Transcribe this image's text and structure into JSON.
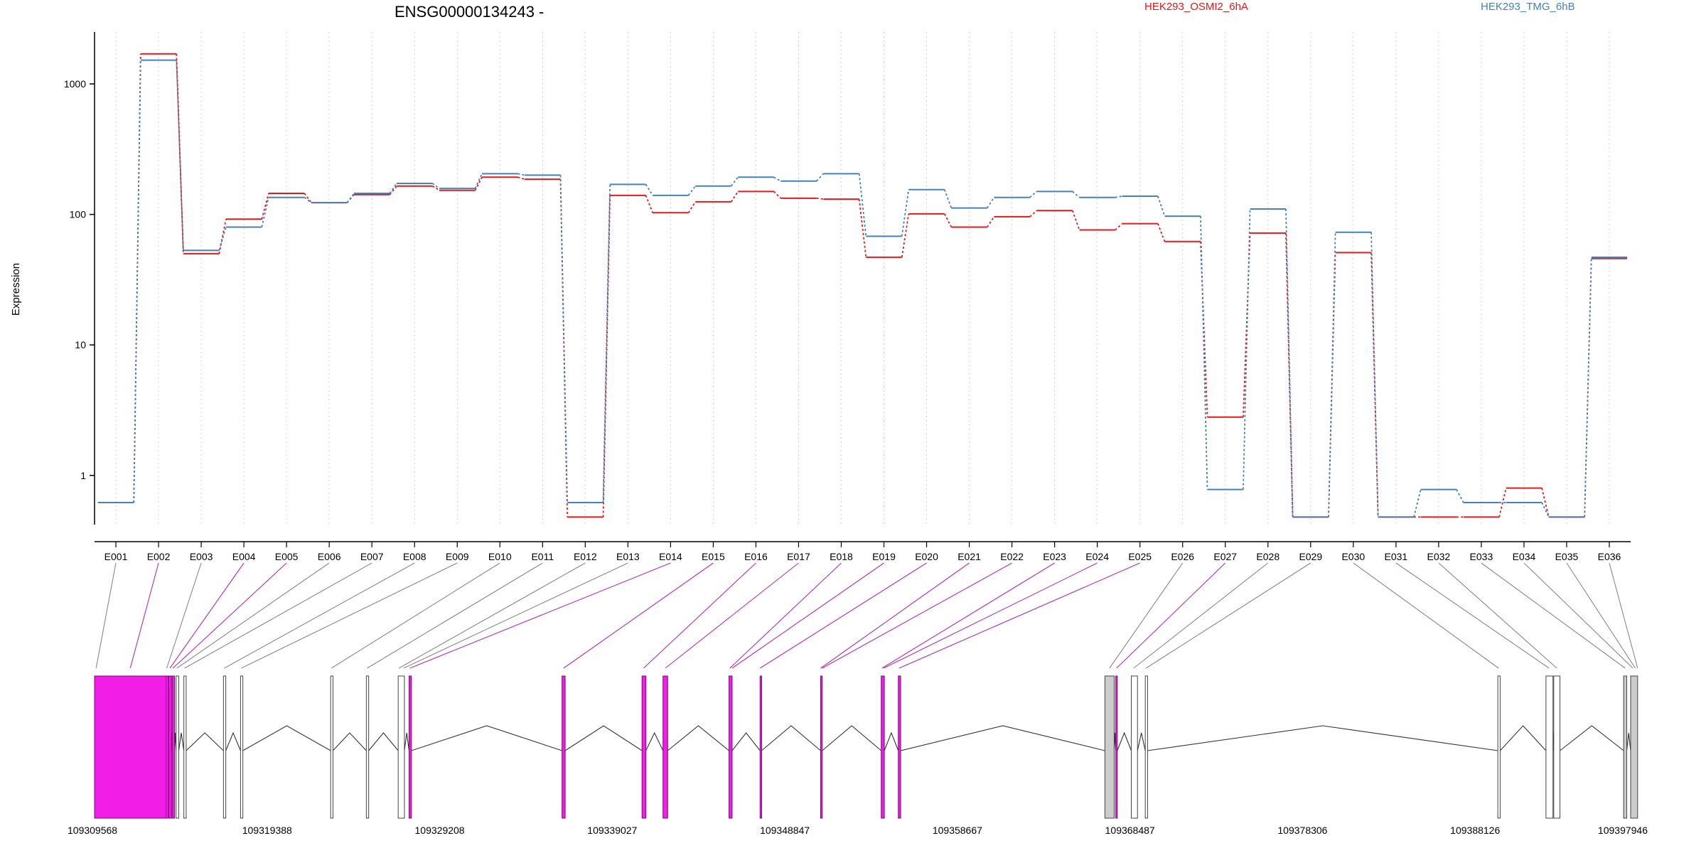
{
  "chart_data": {
    "type": "line",
    "title": "ENSG00000134243 -",
    "ylabel": "Expression",
    "y_scale": "log",
    "ylim": [
      0.42,
      2500
    ],
    "y_ticks": [
      {
        "value": 1,
        "label": "1"
      },
      {
        "value": 10,
        "label": "10"
      },
      {
        "value": 100,
        "label": "100"
      },
      {
        "value": 1000,
        "label": "1000"
      }
    ],
    "categories": [
      "E001",
      "E002",
      "E003",
      "E004",
      "E005",
      "E006",
      "E007",
      "E008",
      "E009",
      "E010",
      "E011",
      "E012",
      "E013",
      "E014",
      "E015",
      "E016",
      "E017",
      "E018",
      "E019",
      "E020",
      "E021",
      "E022",
      "E023",
      "E024",
      "E025",
      "E026",
      "E027",
      "E028",
      "E029",
      "E030",
      "E031",
      "E032",
      "E033",
      "E034",
      "E035",
      "E036"
    ],
    "grid": "vertical-dotted",
    "legend_position": "top",
    "series": [
      {
        "name": "HEK293_OSMI2_6hA",
        "color": "#e31a1c",
        "values": [
          0.62,
          1700,
          50,
          92,
          145,
          123,
          142,
          165,
          153,
          193,
          186,
          0.48,
          140,
          103,
          125,
          150,
          133,
          131,
          47,
          101,
          80,
          96,
          107,
          76,
          85,
          62,
          2.8,
          72,
          0.48,
          51,
          0.48,
          0.48,
          0.48,
          0.8,
          0.48,
          46
        ]
      },
      {
        "name": "HEK293_TMG_6hB",
        "color": "#4682b4",
        "values": [
          0.62,
          1520,
          53,
          80,
          135,
          123,
          145,
          173,
          158,
          205,
          200,
          0.62,
          170,
          140,
          165,
          193,
          180,
          205,
          68,
          155,
          112,
          135,
          150,
          135,
          138,
          97,
          0.78,
          110,
          0.48,
          73,
          0.48,
          0.78,
          0.62,
          0.62,
          0.48,
          47
        ]
      }
    ],
    "gene_model": {
      "coordinate_labels": [
        "109309568",
        "109319388",
        "109329208",
        "109339027",
        "109348847",
        "109358667",
        "109368487",
        "109378306",
        "109388126",
        "109397946"
      ],
      "exons": [
        {
          "start": 0.0,
          "end": 0.046,
          "highlight": true,
          "color": "#f21ee8"
        },
        {
          "start": 0.046,
          "end": 0.0475,
          "highlight": true,
          "color": "#f21ee8"
        },
        {
          "start": 0.0478,
          "end": 0.0495,
          "highlight": true,
          "color": "#f21ee8"
        },
        {
          "start": 0.05,
          "end": 0.0515,
          "highlight": true,
          "color": "#f21ee8"
        },
        {
          "start": 0.0525,
          "end": 0.0542,
          "highlight": false,
          "color": "#ffffff"
        },
        {
          "start": 0.0575,
          "end": 0.059,
          "highlight": false,
          "color": "#ffffff"
        },
        {
          "start": 0.083,
          "end": 0.0845,
          "highlight": false,
          "color": "#ffffff"
        },
        {
          "start": 0.094,
          "end": 0.0955,
          "highlight": false,
          "color": "#ffffff"
        },
        {
          "start": 0.152,
          "end": 0.1535,
          "highlight": false,
          "color": "#ffffff"
        },
        {
          "start": 0.175,
          "end": 0.1765,
          "highlight": false,
          "color": "#ffffff"
        },
        {
          "start": 0.1955,
          "end": 0.1995,
          "highlight": false,
          "color": "#ffffff"
        },
        {
          "start": 0.2025,
          "end": 0.204,
          "highlight": true,
          "color": "#f21ee8"
        },
        {
          "start": 0.301,
          "end": 0.303,
          "highlight": true,
          "color": "#f21ee8"
        },
        {
          "start": 0.3525,
          "end": 0.355,
          "highlight": true,
          "color": "#f21ee8"
        },
        {
          "start": 0.366,
          "end": 0.369,
          "highlight": true,
          "color": "#f21ee8"
        },
        {
          "start": 0.4085,
          "end": 0.4105,
          "highlight": true,
          "color": "#f21ee8"
        },
        {
          "start": 0.4285,
          "end": 0.4295,
          "highlight": true,
          "color": "#f21ee8"
        },
        {
          "start": 0.4675,
          "end": 0.4685,
          "highlight": true,
          "color": "#f21ee8"
        },
        {
          "start": 0.5065,
          "end": 0.5085,
          "highlight": true,
          "color": "#f21ee8"
        },
        {
          "start": 0.5175,
          "end": 0.519,
          "highlight": true,
          "color": "#f21ee8"
        },
        {
          "start": 0.6505,
          "end": 0.6565,
          "highlight": false,
          "color": "#cccccc"
        },
        {
          "start": 0.6575,
          "end": 0.6585,
          "highlight": true,
          "color": "#f21ee8"
        },
        {
          "start": 0.6675,
          "end": 0.6715,
          "highlight": false,
          "color": "#ffffff"
        },
        {
          "start": 0.6765,
          "end": 0.678,
          "highlight": false,
          "color": "#ffffff"
        },
        {
          "start": 0.9035,
          "end": 0.905,
          "highlight": false,
          "color": "#ffffff"
        },
        {
          "start": 0.9345,
          "end": 0.939,
          "highlight": false,
          "color": "#ffffff"
        },
        {
          "start": 0.9395,
          "end": 0.9435,
          "highlight": false,
          "color": "#ffffff"
        },
        {
          "start": 0.9845,
          "end": 0.9865,
          "highlight": false,
          "color": "#cccccc"
        },
        {
          "start": 0.989,
          "end": 0.9935,
          "highlight": false,
          "color": "#cccccc"
        }
      ],
      "exon_links": [
        {
          "label": "E001",
          "pos": 0.001,
          "highlight": false
        },
        {
          "label": "E002",
          "pos": 0.023,
          "highlight": true
        },
        {
          "label": "E003",
          "pos": 0.0465,
          "highlight": false
        },
        {
          "label": "E004",
          "pos": 0.0485,
          "highlight": true
        },
        {
          "label": "E005",
          "pos": 0.0505,
          "highlight": true
        },
        {
          "label": "E006",
          "pos": 0.053,
          "highlight": false
        },
        {
          "label": "E007",
          "pos": 0.058,
          "highlight": false
        },
        {
          "label": "E008",
          "pos": 0.0835,
          "highlight": false
        },
        {
          "label": "E009",
          "pos": 0.0945,
          "highlight": false
        },
        {
          "label": "E010",
          "pos": 0.1525,
          "highlight": false
        },
        {
          "label": "E011",
          "pos": 0.1755,
          "highlight": false
        },
        {
          "label": "E012",
          "pos": 0.196,
          "highlight": false
        },
        {
          "label": "E013",
          "pos": 0.199,
          "highlight": false
        },
        {
          "label": "E014",
          "pos": 0.203,
          "highlight": true
        },
        {
          "label": "E015",
          "pos": 0.302,
          "highlight": true
        },
        {
          "label": "E016",
          "pos": 0.3535,
          "highlight": true
        },
        {
          "label": "E017",
          "pos": 0.3675,
          "highlight": true
        },
        {
          "label": "E018",
          "pos": 0.409,
          "highlight": true
        },
        {
          "label": "E019",
          "pos": 0.4105,
          "highlight": true
        },
        {
          "label": "E020",
          "pos": 0.4285,
          "highlight": true
        },
        {
          "label": "E021",
          "pos": 0.4675,
          "highlight": true
        },
        {
          "label": "E022",
          "pos": 0.4685,
          "highlight": true
        },
        {
          "label": "E023",
          "pos": 0.507,
          "highlight": true
        },
        {
          "label": "E024",
          "pos": 0.508,
          "highlight": true
        },
        {
          "label": "E025",
          "pos": 0.518,
          "highlight": true
        },
        {
          "label": "E026",
          "pos": 0.6535,
          "highlight": false
        },
        {
          "label": "E027",
          "pos": 0.658,
          "highlight": true
        },
        {
          "label": "E028",
          "pos": 0.669,
          "highlight": false
        },
        {
          "label": "E029",
          "pos": 0.677,
          "highlight": false
        },
        {
          "label": "E030",
          "pos": 0.904,
          "highlight": false
        },
        {
          "label": "E031",
          "pos": 0.9365,
          "highlight": false
        },
        {
          "label": "E032",
          "pos": 0.9415,
          "highlight": false
        },
        {
          "label": "E033",
          "pos": 0.9855,
          "highlight": false
        },
        {
          "label": "E034",
          "pos": 0.9905,
          "highlight": false
        },
        {
          "label": "E035",
          "pos": 0.992,
          "highlight": false
        },
        {
          "label": "E036",
          "pos": 0.9935,
          "highlight": false
        }
      ]
    }
  },
  "colors": {
    "highlight_exon": "#f21ee8",
    "highlight_link": "#b030b0",
    "plain_link": "#888888",
    "grid": "#cfcfcf"
  }
}
